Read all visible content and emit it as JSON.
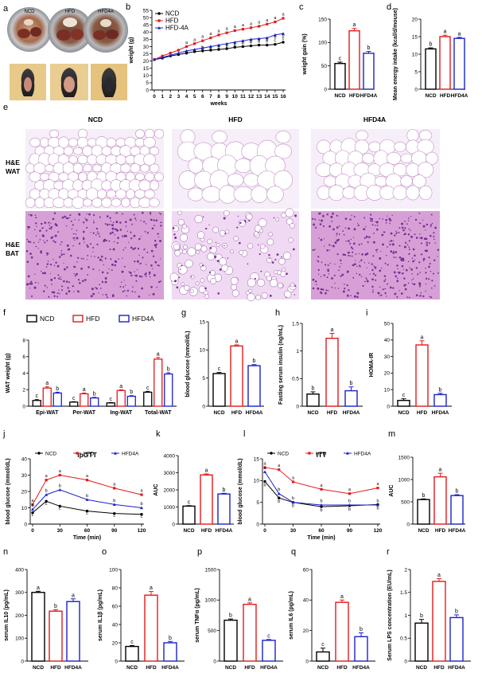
{
  "panel_letters": [
    "a",
    "b",
    "c",
    "d",
    "e",
    "f",
    "g",
    "h",
    "i",
    "j",
    "k",
    "l",
    "m",
    "n",
    "o",
    "p",
    "q",
    "r"
  ],
  "panel_a": {
    "dish_labels": [
      "NCD",
      "HFD",
      "HFD4A"
    ]
  },
  "panel_e": {
    "columns": [
      "NCD",
      "HFD",
      "HFD4A"
    ],
    "rows": [
      {
        "line1": "H&E",
        "line2": "WAT"
      },
      {
        "line1": "H&E",
        "line2": "BAT"
      }
    ],
    "colors": {
      "wat_bg": "#f6eef8",
      "wat_line": "#c58dc8",
      "bat_bg": "#d6a0d6",
      "bat_dot": "#7a2d93",
      "bat_light": "#f0d9f2"
    }
  },
  "series_colors": {
    "NCD": "#000000",
    "HFD": "#e41a1c",
    "HFD4A": "#1a22c8"
  },
  "chart_data": [
    {
      "id": "b",
      "type": "line",
      "xlabel": "weeks",
      "ylabel": "weight (g)",
      "ylim": [
        0,
        55
      ],
      "yticks": [
        0,
        5,
        10,
        15,
        20,
        25,
        30,
        35,
        40,
        45,
        50,
        55
      ],
      "x": [
        0,
        1,
        2,
        3,
        4,
        5,
        6,
        7,
        8,
        9,
        10,
        11,
        12,
        13,
        14,
        15,
        16
      ],
      "legend": [
        "NCD",
        "HFD",
        "HFD-4A"
      ],
      "series": [
        {
          "name": "NCD",
          "key": "NCD",
          "values": [
            21,
            22,
            23.5,
            24.5,
            25.5,
            26.5,
            27,
            27.5,
            28,
            28.5,
            29.5,
            30,
            30.5,
            31,
            31,
            31.5,
            33
          ],
          "letters": [
            "",
            "",
            "",
            "",
            "",
            "",
            "b",
            "c",
            "c",
            "c",
            "c",
            "c",
            "c",
            "c",
            "c",
            "c",
            "c"
          ]
        },
        {
          "name": "HFD",
          "key": "HFD",
          "values": [
            21,
            23.5,
            25.5,
            27.5,
            30,
            32,
            34,
            36,
            38,
            39.5,
            41,
            42,
            43,
            44,
            45.5,
            47,
            49.5
          ],
          "letters": [
            "",
            "",
            "",
            "",
            "a",
            "a",
            "a",
            "a",
            "a",
            "a",
            "a",
            "a",
            "a",
            "a",
            "a",
            "a",
            "a"
          ]
        },
        {
          "name": "HFD-4A",
          "key": "HFD4A",
          "values": [
            21,
            22.5,
            24,
            25.5,
            27,
            28,
            29,
            30,
            31,
            32,
            33,
            34,
            35,
            35.5,
            36,
            38,
            39
          ],
          "letters": [
            "",
            "",
            "",
            "",
            "b",
            "b",
            "b",
            "b",
            "b",
            "b",
            "b",
            "b",
            "b",
            "b",
            "b",
            "b",
            "b"
          ]
        }
      ]
    },
    {
      "id": "c",
      "type": "bar",
      "ylabel": "weight gain (%)",
      "ylim": [
        0,
        150
      ],
      "yticks": [
        0,
        50,
        100,
        150
      ],
      "categories": [
        "NCD",
        "HFD",
        "HFD4A"
      ],
      "values": [
        55,
        125,
        77
      ],
      "errors": [
        3,
        5,
        4
      ],
      "letters": [
        "c",
        "a",
        "b"
      ]
    },
    {
      "id": "d",
      "type": "bar",
      "ylabel": "Mean energy intake (kcal/d/mouse)",
      "ylim": [
        0,
        20
      ],
      "yticks": [
        0,
        5,
        10,
        15,
        20
      ],
      "categories": [
        "NCD",
        "HFD",
        "HFD4A"
      ],
      "values": [
        11.5,
        15,
        14.5
      ],
      "errors": [
        0.3,
        0.4,
        0.3
      ],
      "letters": [
        "b",
        "a",
        "a"
      ]
    },
    {
      "id": "f",
      "type": "bar",
      "ylabel": "WAT weight (g)",
      "ylim": [
        0,
        8
      ],
      "yticks": [
        0,
        2,
        4,
        6,
        8
      ],
      "categories": [
        "Epi-WAT",
        "Per-WAT",
        "Ing-WAT",
        "Total-WAT"
      ],
      "legend": [
        "NCD",
        "HFD",
        "HFD4A"
      ],
      "series": [
        {
          "name": "NCD",
          "key": "NCD",
          "values": [
            0.7,
            0.5,
            0.4,
            1.7
          ],
          "errors": [
            0.1,
            0.05,
            0.05,
            0.1
          ],
          "letters": [
            "c",
            "c",
            "c",
            "c"
          ]
        },
        {
          "name": "HFD",
          "key": "HFD",
          "values": [
            2.2,
            1.5,
            1.9,
            5.7
          ],
          "errors": [
            0.15,
            0.1,
            0.1,
            0.2
          ],
          "letters": [
            "a",
            "a",
            "a",
            "a"
          ]
        },
        {
          "name": "HFD4A",
          "key": "HFD4A",
          "values": [
            1.6,
            1.0,
            1.2,
            3.9
          ],
          "errors": [
            0.1,
            0.08,
            0.08,
            0.15
          ],
          "letters": [
            "b",
            "b",
            "b",
            "b"
          ]
        }
      ]
    },
    {
      "id": "g",
      "type": "bar",
      "ylabel": "blood glucose (mmol/dL)",
      "ylim": [
        0,
        15
      ],
      "yticks": [
        0,
        5,
        10,
        15
      ],
      "categories": [
        "NCD",
        "HFD",
        "HFD4A"
      ],
      "values": [
        5.8,
        10.7,
        7.2
      ],
      "errors": [
        0.2,
        0.2,
        0.2
      ],
      "letters": [
        "c",
        "a",
        "b"
      ]
    },
    {
      "id": "h",
      "type": "bar",
      "ylabel": "Fasting serum insulin (ng/mL)",
      "ylim": [
        0,
        1.5
      ],
      "yticks": [
        0.0,
        0.5,
        1.0,
        1.5
      ],
      "categories": [
        "NCD",
        "HFD",
        "HFD4A"
      ],
      "values": [
        0.22,
        1.23,
        0.28
      ],
      "errors": [
        0.04,
        0.09,
        0.07
      ],
      "letters": [
        "b",
        "a",
        "b"
      ]
    },
    {
      "id": "i",
      "type": "bar",
      "ylabel": "HOMA-IR",
      "ylim": [
        0,
        50
      ],
      "yticks": [
        0,
        10,
        20,
        30,
        40,
        50
      ],
      "categories": [
        "NCD",
        "HFD",
        "HFD4A"
      ],
      "values": [
        3.5,
        37,
        7
      ],
      "errors": [
        1,
        2.5,
        0.8
      ],
      "letters": [
        "c",
        "a",
        "b"
      ]
    },
    {
      "id": "j",
      "type": "line",
      "title": "ipGTT",
      "xlabel": "Time (min)",
      "ylabel": "blood glucose (mmol/dL)",
      "ylim": [
        0,
        40
      ],
      "yticks": [
        0,
        10,
        20,
        30,
        40
      ],
      "xticks": [
        0,
        30,
        60,
        90,
        120
      ],
      "x": [
        0,
        15,
        30,
        60,
        90,
        120
      ],
      "legend": [
        "NCD",
        "HFD",
        "HFD4A"
      ],
      "series": [
        {
          "name": "NCD",
          "key": "NCD",
          "values": [
            7,
            14,
            11,
            8,
            6.5,
            6
          ],
          "letters": [
            "c",
            "c",
            "c",
            "c",
            "c",
            "c"
          ]
        },
        {
          "name": "HFD",
          "key": "HFD",
          "values": [
            12,
            27,
            30,
            27,
            22,
            18
          ],
          "letters": [
            "a",
            "a",
            "a",
            "a",
            "a",
            "a"
          ]
        },
        {
          "name": "HFD4A",
          "key": "HFD4A",
          "values": [
            9,
            18,
            21,
            15,
            12,
            10
          ],
          "letters": [
            "b",
            "b",
            "b",
            "b",
            "b",
            "b"
          ]
        }
      ]
    },
    {
      "id": "k",
      "type": "bar",
      "ylabel": "AUC",
      "ylim": [
        0,
        4000
      ],
      "yticks": [
        0,
        1000,
        2000,
        3000,
        4000
      ],
      "categories": [
        "NCD",
        "HFD",
        "HFD4A"
      ],
      "values": [
        1050,
        2870,
        1760
      ],
      "errors": [
        30,
        60,
        40
      ],
      "letters": [
        "c",
        "a",
        "b"
      ]
    },
    {
      "id": "l",
      "type": "line",
      "title": "ITT",
      "xlabel": "Time (min)",
      "ylabel": "blood glucose (mmol/dL)",
      "ylim": [
        0,
        15
      ],
      "yticks": [
        0,
        5,
        10,
        15
      ],
      "xticks": [
        0,
        30,
        60,
        90,
        120
      ],
      "x": [
        0,
        15,
        30,
        60,
        90,
        120
      ],
      "legend": [
        "NCD",
        "HFD",
        "HFD4A"
      ],
      "series": [
        {
          "name": "NCD",
          "key": "NCD",
          "values": [
            9.8,
            6,
            5,
            4,
            4.2,
            4.5
          ],
          "letters": [
            "b",
            "b",
            "b",
            "b",
            "b",
            "b"
          ]
        },
        {
          "name": "HFD",
          "key": "HFD",
          "values": [
            13,
            12.5,
            9.7,
            8,
            7,
            8.3
          ],
          "letters": [
            "a",
            "a",
            "a",
            "a",
            "a",
            "a"
          ]
        },
        {
          "name": "HFD4A",
          "key": "HFD4A",
          "values": [
            12,
            7,
            5,
            4.4,
            4.4,
            4.4
          ],
          "letters": [
            "a",
            "b",
            "b",
            "b",
            "b",
            "b"
          ]
        }
      ]
    },
    {
      "id": "m",
      "type": "bar",
      "ylabel": "AUC",
      "ylim": [
        0,
        1500
      ],
      "yticks": [
        0,
        500,
        1000,
        1500
      ],
      "categories": [
        "NCD",
        "HFD",
        "HFD4A"
      ],
      "values": [
        550,
        1060,
        640
      ],
      "errors": [
        15,
        80,
        20
      ],
      "letters": [
        "b",
        "a",
        "b"
      ]
    },
    {
      "id": "n",
      "type": "bar",
      "ylabel": "serum IL10 (pg/mL)",
      "ylim": [
        0,
        400
      ],
      "yticks": [
        0,
        100,
        200,
        300,
        400
      ],
      "categories": [
        "NCD",
        "HFD",
        "HFD4A"
      ],
      "values": [
        300,
        218,
        260
      ],
      "errors": [
        5,
        6,
        12
      ],
      "letters": [
        "a",
        "b",
        "a"
      ]
    },
    {
      "id": "o",
      "type": "bar",
      "ylabel": "serum IL1β (pg/mL)",
      "ylim": [
        0,
        100
      ],
      "yticks": [
        0,
        20,
        40,
        60,
        80,
        100
      ],
      "categories": [
        "NCD",
        "HFD",
        "HFD4A"
      ],
      "values": [
        16,
        72,
        20
      ],
      "errors": [
        1,
        4,
        1.5
      ],
      "letters": [
        "c",
        "a",
        "b"
      ]
    },
    {
      "id": "p",
      "type": "bar",
      "ylabel": "serum TNFα (pg/mL)",
      "ylim": [
        0,
        1500
      ],
      "yticks": [
        0,
        500,
        1000,
        1500
      ],
      "categories": [
        "NCD",
        "HFD",
        "HFD4A"
      ],
      "values": [
        670,
        930,
        340
      ],
      "errors": [
        20,
        25,
        15
      ],
      "letters": [
        "b",
        "a",
        "c"
      ]
    },
    {
      "id": "q",
      "type": "bar",
      "ylabel": "serum IL6 (pg/mL)",
      "ylim": [
        0,
        60
      ],
      "yticks": [
        0,
        20,
        40,
        60
      ],
      "categories": [
        "NCD",
        "HFD",
        "HFD4A"
      ],
      "values": [
        6,
        38.5,
        16
      ],
      "errors": [
        2.5,
        1.5,
        2.5
      ],
      "letters": [
        "c",
        "a",
        "b"
      ]
    },
    {
      "id": "r",
      "type": "bar",
      "ylabel": "Serum LPS concentration (EU/mL)",
      "ylim": [
        0,
        2.0
      ],
      "yticks": [
        0.0,
        0.5,
        1.0,
        1.5,
        2.0
      ],
      "categories": [
        "NCD",
        "HFD",
        "HFD4A"
      ],
      "values": [
        0.83,
        1.74,
        0.95
      ],
      "errors": [
        0.08,
        0.06,
        0.06
      ],
      "letters": [
        "b",
        "a",
        "b"
      ]
    }
  ]
}
